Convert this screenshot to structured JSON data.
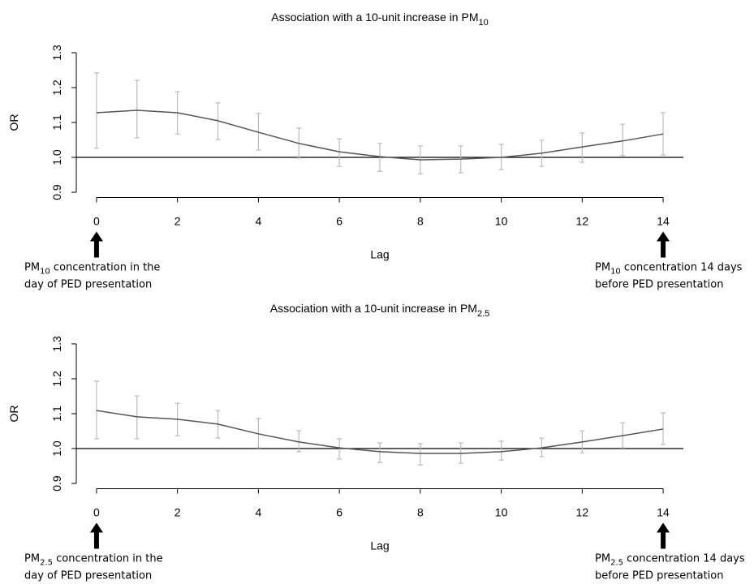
{
  "chart_data": [
    {
      "type": "line",
      "title": {
        "text": "Association with a 10-unit increase in PM",
        "subscript": "10"
      },
      "xlabel": "Lag",
      "ylabel": "OR",
      "x": [
        0,
        1,
        2,
        3,
        4,
        5,
        6,
        7,
        8,
        9,
        10,
        11,
        12,
        13,
        14
      ],
      "series": [
        {
          "color": "#555555",
          "error_color": "#bbbbbb",
          "values": [
            1.128,
            1.135,
            1.128,
            1.105,
            1.072,
            1.04,
            1.016,
            1.002,
            0.993,
            0.995,
            1.0,
            1.012,
            1.03,
            1.047,
            1.067
          ],
          "lower": [
            1.026,
            1.056,
            1.067,
            1.051,
            1.021,
            0.998,
            0.974,
            0.96,
            0.953,
            0.956,
            0.965,
            0.974,
            0.986,
            1.005,
            1.007
          ],
          "upper": [
            1.242,
            1.221,
            1.188,
            1.156,
            1.126,
            1.084,
            1.053,
            1.04,
            1.033,
            1.033,
            1.037,
            1.049,
            1.07,
            1.095,
            1.128
          ]
        }
      ],
      "xlim": [
        -0.5,
        14.5
      ],
      "ylim": [
        0.885,
        1.315
      ],
      "xticks": [
        0,
        2,
        4,
        6,
        8,
        10,
        12,
        14
      ],
      "yticks": [
        0.9,
        {
          "value": 1,
          "label": "1.0"
        },
        1.1,
        1.2,
        1.3
      ],
      "hline": 1,
      "annotations": [
        {
          "prefix": "PM",
          "subscript": "10",
          "text": " concentration in the",
          "line2": "day of PED presentation"
        },
        {
          "prefix": "PM",
          "subscript": "10",
          "text": " concentration 14 days",
          "line2": "before PED presentation"
        }
      ]
    },
    {
      "type": "line",
      "title": {
        "text": "Association with a 10-unit increase in PM",
        "subscript": "2.5"
      },
      "xlabel": "Lag",
      "ylabel": "OR",
      "x": [
        0,
        1,
        2,
        3,
        4,
        5,
        6,
        7,
        8,
        9,
        10,
        11,
        12,
        13,
        14
      ],
      "series": [
        {
          "color": "#555555",
          "error_color": "#bbbbbb",
          "values": [
            1.109,
            1.091,
            1.084,
            1.07,
            1.042,
            1.019,
            1.002,
            0.991,
            0.986,
            0.986,
            0.991,
            1.002,
            1.019,
            1.037,
            1.056
          ],
          "lower": [
            1.028,
            1.028,
            1.037,
            1.03,
            1.002,
            0.991,
            0.97,
            0.96,
            0.953,
            0.958,
            0.967,
            0.977,
            0.988,
            1.002,
            1.012
          ],
          "upper": [
            1.193,
            1.151,
            1.13,
            1.109,
            1.086,
            1.051,
            1.028,
            1.016,
            1.014,
            1.016,
            1.021,
            1.03,
            1.051,
            1.074,
            1.102
          ]
        }
      ],
      "xlim": [
        -0.5,
        14.5
      ],
      "ylim": [
        0.885,
        1.315
      ],
      "xticks": [
        0,
        2,
        4,
        6,
        8,
        10,
        12,
        14
      ],
      "yticks": [
        0.9,
        {
          "value": 1,
          "label": "1.0"
        },
        1.1,
        1.2,
        1.3
      ],
      "hline": 1,
      "annotations": [
        {
          "prefix": "PM",
          "subscript": "2.5",
          "text": " concentration in the",
          "line2": "day of PED presentation"
        },
        {
          "prefix": "PM",
          "subscript": "2.5",
          "text": " concentration 14 days",
          "line2": "before PED presentation"
        }
      ]
    }
  ]
}
